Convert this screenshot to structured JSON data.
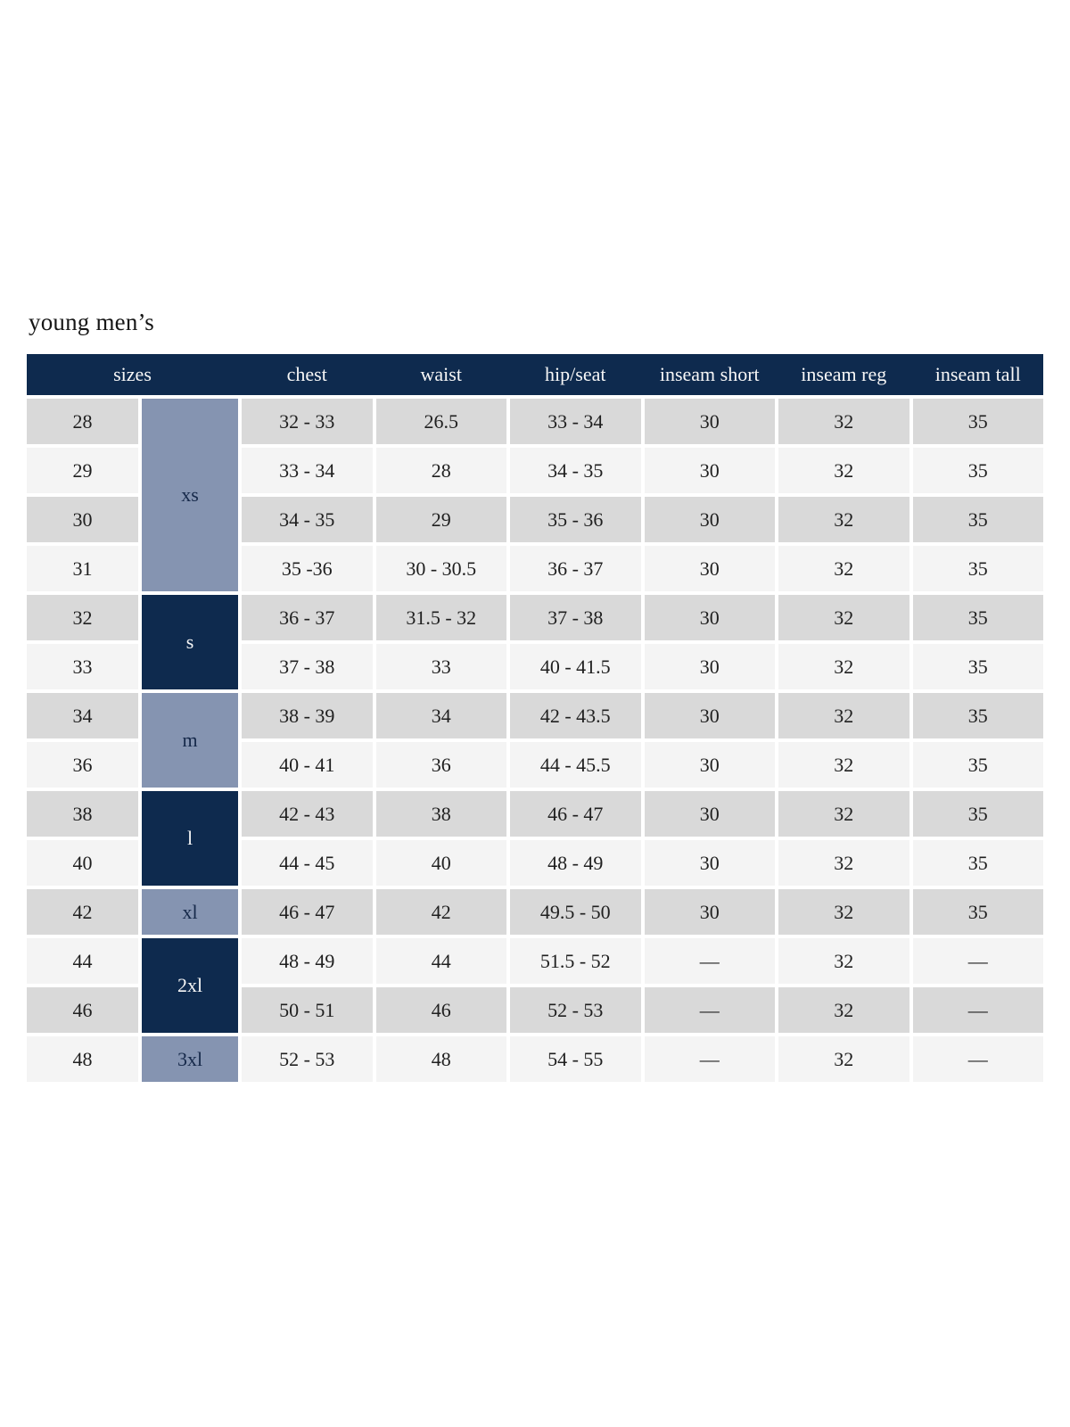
{
  "title": "young men’s",
  "colors": {
    "page_bg": "#ffffff",
    "navy": "#0e2a4e",
    "blue_gray": "#8594b1",
    "row_gray": "#d9d9d9",
    "row_light": "#f4f4f4",
    "header_text": "#f7f7f7",
    "body_text": "#1f1f1f",
    "group_dark_text": "#f5f5f5",
    "group_light_text": "#16294a",
    "title_text": "#161616"
  },
  "table": {
    "headers": [
      "sizes",
      "chest",
      "waist",
      "hip/seat",
      "inseam short",
      "inseam reg",
      "inseam tall"
    ],
    "size_groups": [
      {
        "label": "xs",
        "rows": 4,
        "style": "light"
      },
      {
        "label": "s",
        "rows": 2,
        "style": "dark"
      },
      {
        "label": "m",
        "rows": 2,
        "style": "light"
      },
      {
        "label": "l",
        "rows": 2,
        "style": "dark"
      },
      {
        "label": "xl",
        "rows": 1,
        "style": "light"
      },
      {
        "label": "2xl",
        "rows": 2,
        "style": "dark"
      },
      {
        "label": "3xl",
        "rows": 1,
        "style": "light"
      }
    ],
    "rows": [
      {
        "size": "28",
        "chest": "32 - 33",
        "waist": "26.5",
        "hip_seat": "33 - 34",
        "inseam_short": "30",
        "inseam_reg": "32",
        "inseam_tall": "35"
      },
      {
        "size": "29",
        "chest": "33 - 34",
        "waist": "28",
        "hip_seat": "34 - 35",
        "inseam_short": "30",
        "inseam_reg": "32",
        "inseam_tall": "35"
      },
      {
        "size": "30",
        "chest": "34 - 35",
        "waist": "29",
        "hip_seat": "35 - 36",
        "inseam_short": "30",
        "inseam_reg": "32",
        "inseam_tall": "35"
      },
      {
        "size": "31",
        "chest": "35 -36",
        "waist": "30 - 30.5",
        "hip_seat": "36 - 37",
        "inseam_short": "30",
        "inseam_reg": "32",
        "inseam_tall": "35"
      },
      {
        "size": "32",
        "chest": "36 - 37",
        "waist": "31.5 - 32",
        "hip_seat": "37 - 38",
        "inseam_short": "30",
        "inseam_reg": "32",
        "inseam_tall": "35"
      },
      {
        "size": "33",
        "chest": "37 - 38",
        "waist": "33",
        "hip_seat": "40 - 41.5",
        "inseam_short": "30",
        "inseam_reg": "32",
        "inseam_tall": "35"
      },
      {
        "size": "34",
        "chest": "38 - 39",
        "waist": "34",
        "hip_seat": "42 - 43.5",
        "inseam_short": "30",
        "inseam_reg": "32",
        "inseam_tall": "35"
      },
      {
        "size": "36",
        "chest": "40 - 41",
        "waist": "36",
        "hip_seat": "44 - 45.5",
        "inseam_short": "30",
        "inseam_reg": "32",
        "inseam_tall": "35"
      },
      {
        "size": "38",
        "chest": "42 - 43",
        "waist": "38",
        "hip_seat": "46 - 47",
        "inseam_short": "30",
        "inseam_reg": "32",
        "inseam_tall": "35"
      },
      {
        "size": "40",
        "chest": "44 - 45",
        "waist": "40",
        "hip_seat": "48 - 49",
        "inseam_short": "30",
        "inseam_reg": "32",
        "inseam_tall": "35"
      },
      {
        "size": "42",
        "chest": "46 - 47",
        "waist": "42",
        "hip_seat": "49.5 - 50",
        "inseam_short": "30",
        "inseam_reg": "32",
        "inseam_tall": "35"
      },
      {
        "size": "44",
        "chest": "48 - 49",
        "waist": "44",
        "hip_seat": "51.5 - 52",
        "inseam_short": "—",
        "inseam_reg": "32",
        "inseam_tall": "—"
      },
      {
        "size": "46",
        "chest": "50 - 51",
        "waist": "46",
        "hip_seat": "52 - 53",
        "inseam_short": "—",
        "inseam_reg": "32",
        "inseam_tall": "—"
      },
      {
        "size": "48",
        "chest": "52 - 53",
        "waist": "48",
        "hip_seat": "54 - 55",
        "inseam_short": "—",
        "inseam_reg": "32",
        "inseam_tall": "—"
      }
    ]
  }
}
